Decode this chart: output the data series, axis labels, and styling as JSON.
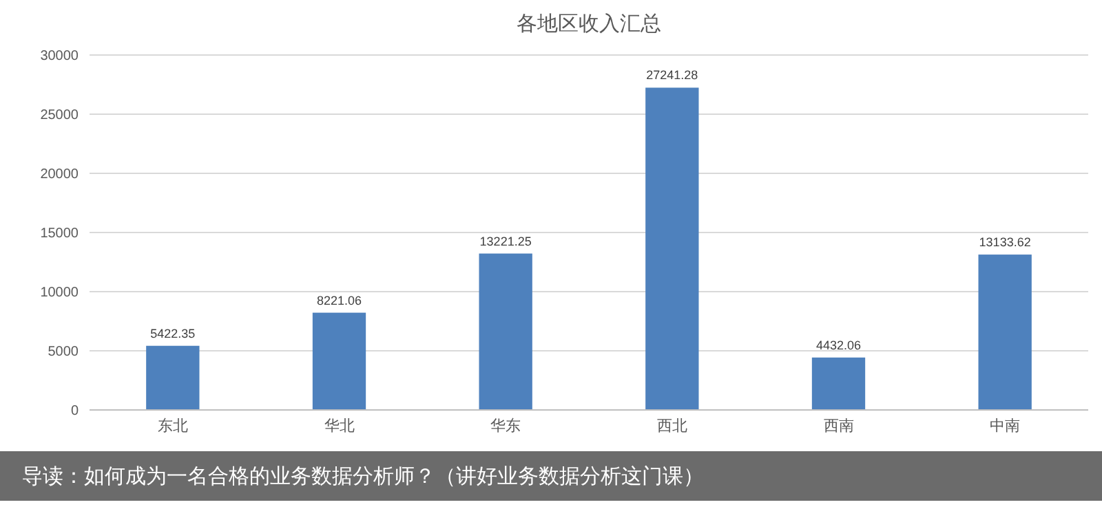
{
  "chart_data": {
    "type": "bar",
    "title": "各地区收入汇总",
    "categories": [
      "东北",
      "华北",
      "华东",
      "西北",
      "西南",
      "中南"
    ],
    "values": [
      5422.35,
      8221.06,
      13221.25,
      27241.28,
      4432.06,
      13133.62
    ],
    "color": "#4e81bd",
    "ylim": [
      0,
      30000
    ],
    "yticks": [
      0,
      5000,
      10000,
      15000,
      20000,
      25000,
      30000
    ],
    "grid": "y",
    "data_labels": true,
    "annotations": [
      "导读：如何成为一名合格的业务数据分析师？（讲好业务数据分析这门课）"
    ]
  }
}
